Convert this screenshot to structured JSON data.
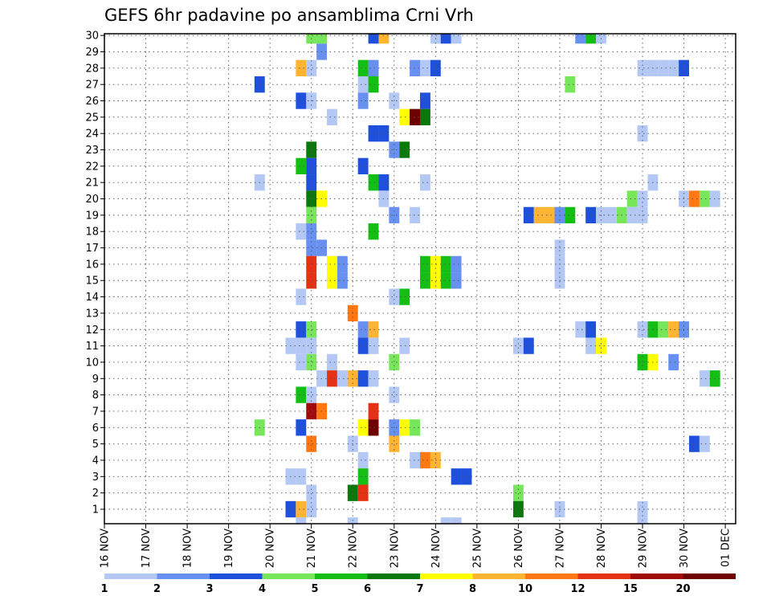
{
  "chart_data": {
    "type": "heatmap",
    "title": "GEFS 6hr padavine po ansamblima Crni Vrh",
    "x_labels": [
      "16 NOV",
      "17 NOV",
      "18 NOV",
      "19 NOV",
      "20 NOV",
      "21 NOV",
      "22 NOV",
      "23 NOV",
      "24 NOV",
      "25 NOV",
      "26 NOV",
      "27 NOV",
      "28 NOV",
      "29 NOV",
      "30 NOV",
      "01 DEC"
    ],
    "y_labels": [
      "1",
      "2",
      "3",
      "4",
      "5",
      "6",
      "7",
      "8",
      "9",
      "10",
      "11",
      "12",
      "13",
      "14",
      "15",
      "16",
      "17",
      "18",
      "19",
      "20",
      "21",
      "22",
      "23",
      "24",
      "25",
      "26",
      "27",
      "28",
      "29",
      "30"
    ],
    "y_range": [
      1,
      30
    ],
    "x_range_days": [
      0,
      15.25
    ],
    "grid": true,
    "colorbar": {
      "ticks": [
        "1",
        "2",
        "3",
        "4",
        "5",
        "6",
        "7",
        "8",
        "10",
        "12",
        "15",
        "20"
      ],
      "colors": [
        "#b4c8f5",
        "#6890f0",
        "#1e50dc",
        "#78e65a",
        "#14be14",
        "#0a780a",
        "#ffff00",
        "#ffb432",
        "#ff7814",
        "#e63214",
        "#a00a0a",
        "#6e0000"
      ]
    },
    "cells": [
      {
        "member": 30,
        "day": 5.0,
        "class": 4
      },
      {
        "member": 30,
        "day": 5.25,
        "class": 4
      },
      {
        "member": 30,
        "day": 6.5,
        "class": 3
      },
      {
        "member": 30,
        "day": 6.75,
        "class": 8
      },
      {
        "member": 30,
        "day": 8.0,
        "class": 1
      },
      {
        "member": 30,
        "day": 8.25,
        "class": 3
      },
      {
        "member": 30,
        "day": 8.5,
        "class": 1
      },
      {
        "member": 30,
        "day": 11.5,
        "class": 2
      },
      {
        "member": 30,
        "day": 11.75,
        "class": 5
      },
      {
        "member": 30,
        "day": 12.0,
        "class": 1
      },
      {
        "member": 29,
        "day": 5.25,
        "class": 2
      },
      {
        "member": 28,
        "day": 4.75,
        "class": 8
      },
      {
        "member": 28,
        "day": 5.0,
        "class": 1
      },
      {
        "member": 28,
        "day": 6.25,
        "class": 5
      },
      {
        "member": 28,
        "day": 6.5,
        "class": 2
      },
      {
        "member": 28,
        "day": 7.5,
        "class": 2
      },
      {
        "member": 28,
        "day": 7.75,
        "class": 1
      },
      {
        "member": 28,
        "day": 8.0,
        "class": 3
      },
      {
        "member": 28,
        "day": 13.0,
        "class": 1
      },
      {
        "member": 28,
        "day": 13.25,
        "class": 1
      },
      {
        "member": 28,
        "day": 13.5,
        "class": 1
      },
      {
        "member": 28,
        "day": 13.75,
        "class": 1
      },
      {
        "member": 28,
        "day": 14.0,
        "class": 3
      },
      {
        "member": 27,
        "day": 3.75,
        "class": 3
      },
      {
        "member": 27,
        "day": 6.25,
        "class": 1
      },
      {
        "member": 27,
        "day": 6.5,
        "class": 5
      },
      {
        "member": 27,
        "day": 11.25,
        "class": 4
      },
      {
        "member": 26,
        "day": 4.75,
        "class": 3
      },
      {
        "member": 26,
        "day": 5.0,
        "class": 1
      },
      {
        "member": 26,
        "day": 6.25,
        "class": 2
      },
      {
        "member": 26,
        "day": 7.0,
        "class": 1
      },
      {
        "member": 26,
        "day": 7.75,
        "class": 3
      },
      {
        "member": 25,
        "day": 5.5,
        "class": 1
      },
      {
        "member": 25,
        "day": 7.25,
        "class": 7
      },
      {
        "member": 25,
        "day": 7.5,
        "class": 12
      },
      {
        "member": 25,
        "day": 7.75,
        "class": 6
      },
      {
        "member": 24,
        "day": 6.5,
        "class": 3
      },
      {
        "member": 24,
        "day": 6.75,
        "class": 3
      },
      {
        "member": 24,
        "day": 13.0,
        "class": 1
      },
      {
        "member": 23,
        "day": 5.0,
        "class": 6
      },
      {
        "member": 23,
        "day": 7.0,
        "class": 2
      },
      {
        "member": 23,
        "day": 7.25,
        "class": 6
      },
      {
        "member": 22,
        "day": 4.75,
        "class": 5
      },
      {
        "member": 22,
        "day": 5.0,
        "class": 3
      },
      {
        "member": 22,
        "day": 6.25,
        "class": 3
      },
      {
        "member": 21,
        "day": 3.75,
        "class": 1
      },
      {
        "member": 21,
        "day": 5.0,
        "class": 3
      },
      {
        "member": 21,
        "day": 6.5,
        "class": 5
      },
      {
        "member": 21,
        "day": 6.75,
        "class": 3
      },
      {
        "member": 21,
        "day": 7.75,
        "class": 1
      },
      {
        "member": 21,
        "day": 13.25,
        "class": 1
      },
      {
        "member": 20,
        "day": 5.0,
        "class": 6
      },
      {
        "member": 20,
        "day": 5.25,
        "class": 7
      },
      {
        "member": 20,
        "day": 6.75,
        "class": 1
      },
      {
        "member": 20,
        "day": 12.75,
        "class": 4
      },
      {
        "member": 20,
        "day": 13.0,
        "class": 1
      },
      {
        "member": 20,
        "day": 14.0,
        "class": 1
      },
      {
        "member": 20,
        "day": 14.25,
        "class": 9
      },
      {
        "member": 20,
        "day": 14.5,
        "class": 4
      },
      {
        "member": 20,
        "day": 14.75,
        "class": 1
      },
      {
        "member": 19,
        "day": 5.0,
        "class": 4
      },
      {
        "member": 19,
        "day": 7.0,
        "class": 2
      },
      {
        "member": 19,
        "day": 7.5,
        "class": 1
      },
      {
        "member": 19,
        "day": 10.25,
        "class": 3
      },
      {
        "member": 19,
        "day": 10.5,
        "class": 8
      },
      {
        "member": 19,
        "day": 10.75,
        "class": 8
      },
      {
        "member": 19,
        "day": 11.0,
        "class": 2
      },
      {
        "member": 19,
        "day": 11.25,
        "class": 5
      },
      {
        "member": 19,
        "day": 11.75,
        "class": 3
      },
      {
        "member": 19,
        "day": 12.0,
        "class": 1
      },
      {
        "member": 19,
        "day": 12.25,
        "class": 1
      },
      {
        "member": 19,
        "day": 12.5,
        "class": 4
      },
      {
        "member": 19,
        "day": 12.75,
        "class": 1
      },
      {
        "member": 19,
        "day": 13.0,
        "class": 1
      },
      {
        "member": 18,
        "day": 4.75,
        "class": 1
      },
      {
        "member": 18,
        "day": 5.0,
        "class": 2
      },
      {
        "member": 18,
        "day": 6.5,
        "class": 5
      },
      {
        "member": 17,
        "day": 5.0,
        "class": 2
      },
      {
        "member": 17,
        "day": 5.25,
        "class": 2
      },
      {
        "member": 17,
        "day": 11.0,
        "class": 1
      },
      {
        "member": 16,
        "day": 5.0,
        "class": 10
      },
      {
        "member": 16,
        "day": 5.5,
        "class": 7
      },
      {
        "member": 16,
        "day": 5.75,
        "class": 2
      },
      {
        "member": 16,
        "day": 7.75,
        "class": 5
      },
      {
        "member": 16,
        "day": 8.0,
        "class": 7
      },
      {
        "member": 16,
        "day": 8.25,
        "class": 5
      },
      {
        "member": 16,
        "day": 8.5,
        "class": 2
      },
      {
        "member": 16,
        "day": 11.0,
        "class": 1
      },
      {
        "member": 15,
        "day": 5.0,
        "class": 10
      },
      {
        "member": 15,
        "day": 5.5,
        "class": 7
      },
      {
        "member": 15,
        "day": 5.75,
        "class": 2
      },
      {
        "member": 15,
        "day": 7.75,
        "class": 5
      },
      {
        "member": 15,
        "day": 8.0,
        "class": 7
      },
      {
        "member": 15,
        "day": 8.25,
        "class": 5
      },
      {
        "member": 15,
        "day": 8.5,
        "class": 2
      },
      {
        "member": 15,
        "day": 11.0,
        "class": 1
      },
      {
        "member": 14,
        "day": 4.75,
        "class": 1
      },
      {
        "member": 14,
        "day": 7.0,
        "class": 1
      },
      {
        "member": 14,
        "day": 7.25,
        "class": 5
      },
      {
        "member": 13,
        "day": 6.0,
        "class": 9
      },
      {
        "member": 12,
        "day": 4.75,
        "class": 3
      },
      {
        "member": 12,
        "day": 5.0,
        "class": 4
      },
      {
        "member": 12,
        "day": 6.25,
        "class": 2
      },
      {
        "member": 12,
        "day": 6.5,
        "class": 8
      },
      {
        "member": 12,
        "day": 11.5,
        "class": 1
      },
      {
        "member": 12,
        "day": 11.75,
        "class": 3
      },
      {
        "member": 12,
        "day": 13.0,
        "class": 1
      },
      {
        "member": 12,
        "day": 13.25,
        "class": 5
      },
      {
        "member": 12,
        "day": 13.5,
        "class": 4
      },
      {
        "member": 12,
        "day": 13.75,
        "class": 8
      },
      {
        "member": 12,
        "day": 14.0,
        "class": 2
      },
      {
        "member": 11,
        "day": 4.5,
        "class": 1
      },
      {
        "member": 11,
        "day": 4.75,
        "class": 1
      },
      {
        "member": 11,
        "day": 5.0,
        "class": 1
      },
      {
        "member": 11,
        "day": 6.25,
        "class": 3
      },
      {
        "member": 11,
        "day": 6.5,
        "class": 1
      },
      {
        "member": 11,
        "day": 7.25,
        "class": 1
      },
      {
        "member": 11,
        "day": 10.0,
        "class": 1
      },
      {
        "member": 11,
        "day": 10.25,
        "class": 3
      },
      {
        "member": 11,
        "day": 11.75,
        "class": 1
      },
      {
        "member": 11,
        "day": 12.0,
        "class": 7
      },
      {
        "member": 10,
        "day": 4.75,
        "class": 1
      },
      {
        "member": 10,
        "day": 5.0,
        "class": 4
      },
      {
        "member": 10,
        "day": 5.5,
        "class": 1
      },
      {
        "member": 10,
        "day": 7.0,
        "class": 4
      },
      {
        "member": 10,
        "day": 13.0,
        "class": 5
      },
      {
        "member": 10,
        "day": 13.25,
        "class": 7
      },
      {
        "member": 10,
        "day": 13.75,
        "class": 2
      },
      {
        "member": 9,
        "day": 5.25,
        "class": 1
      },
      {
        "member": 9,
        "day": 5.5,
        "class": 10
      },
      {
        "member": 9,
        "day": 5.75,
        "class": 1
      },
      {
        "member": 9,
        "day": 6.0,
        "class": 8
      },
      {
        "member": 9,
        "day": 6.25,
        "class": 3
      },
      {
        "member": 9,
        "day": 6.5,
        "class": 1
      },
      {
        "member": 9,
        "day": 14.5,
        "class": 1
      },
      {
        "member": 9,
        "day": 14.75,
        "class": 5
      },
      {
        "member": 8,
        "day": 4.75,
        "class": 5
      },
      {
        "member": 8,
        "day": 5.0,
        "class": 1
      },
      {
        "member": 8,
        "day": 7.0,
        "class": 1
      },
      {
        "member": 7,
        "day": 5.0,
        "class": 11
      },
      {
        "member": 7,
        "day": 5.25,
        "class": 9
      },
      {
        "member": 7,
        "day": 6.5,
        "class": 10
      },
      {
        "member": 6,
        "day": 3.75,
        "class": 4
      },
      {
        "member": 6,
        "day": 4.75,
        "class": 3
      },
      {
        "member": 6,
        "day": 6.25,
        "class": 7
      },
      {
        "member": 6,
        "day": 6.5,
        "class": 12
      },
      {
        "member": 6,
        "day": 7.0,
        "class": 2
      },
      {
        "member": 6,
        "day": 7.25,
        "class": 7
      },
      {
        "member": 6,
        "day": 7.5,
        "class": 4
      },
      {
        "member": 5,
        "day": 5.0,
        "class": 9
      },
      {
        "member": 5,
        "day": 6.0,
        "class": 1
      },
      {
        "member": 5,
        "day": 7.0,
        "class": 8
      },
      {
        "member": 5,
        "day": 14.25,
        "class": 3
      },
      {
        "member": 5,
        "day": 14.5,
        "class": 1
      },
      {
        "member": 4,
        "day": 6.25,
        "class": 1
      },
      {
        "member": 4,
        "day": 7.5,
        "class": 1
      },
      {
        "member": 4,
        "day": 7.75,
        "class": 9
      },
      {
        "member": 4,
        "day": 8.0,
        "class": 8
      },
      {
        "member": 3,
        "day": 4.5,
        "class": 1
      },
      {
        "member": 3,
        "day": 4.75,
        "class": 1
      },
      {
        "member": 3,
        "day": 6.25,
        "class": 5
      },
      {
        "member": 3,
        "day": 8.5,
        "class": 3
      },
      {
        "member": 3,
        "day": 8.75,
        "class": 3
      },
      {
        "member": 2,
        "day": 5.0,
        "class": 1
      },
      {
        "member": 2,
        "day": 6.0,
        "class": 6
      },
      {
        "member": 2,
        "day": 6.25,
        "class": 10
      },
      {
        "member": 2,
        "day": 10.0,
        "class": 4
      },
      {
        "member": 1,
        "day": 4.5,
        "class": 3
      },
      {
        "member": 1,
        "day": 4.75,
        "class": 8
      },
      {
        "member": 1,
        "day": 5.0,
        "class": 1
      },
      {
        "member": 1,
        "day": 10.0,
        "class": 6
      },
      {
        "member": 1,
        "day": 11.0,
        "class": 1
      },
      {
        "member": 1,
        "day": 13.0,
        "class": 1
      },
      {
        "member": 0,
        "day": 4.75,
        "class": 1
      },
      {
        "member": 0,
        "day": 6.0,
        "class": 1
      },
      {
        "member": 0,
        "day": 8.25,
        "class": 1
      },
      {
        "member": 0,
        "day": 8.5,
        "class": 1
      },
      {
        "member": 0,
        "day": 13.0,
        "class": 1
      }
    ]
  }
}
